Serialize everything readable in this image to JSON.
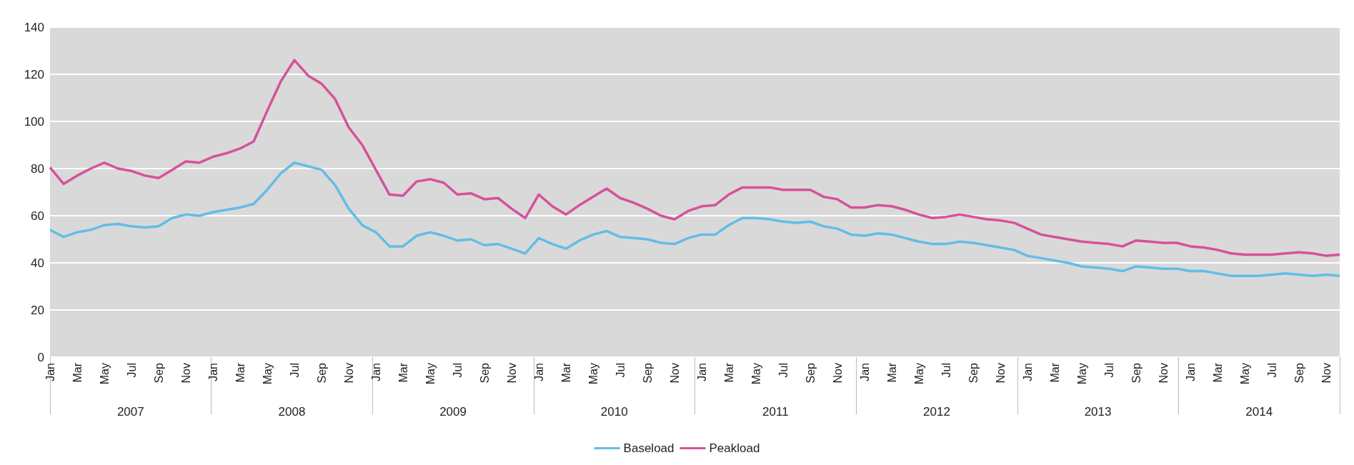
{
  "chart_data": {
    "type": "line",
    "categories": [
      "Jan",
      null,
      "Mar",
      null,
      "May",
      null,
      "Jul",
      null,
      "Sep",
      null,
      "Nov",
      null,
      "Jan",
      null,
      "Mar",
      null,
      "May",
      null,
      "Jul",
      null,
      "Sep",
      null,
      "Nov",
      null,
      "Jan",
      null,
      "Mar",
      null,
      "May",
      null,
      "Jul",
      null,
      "Sep",
      null,
      "Nov",
      null,
      "Jan",
      null,
      "Mar",
      null,
      "May",
      null,
      "Jul",
      null,
      "Sep",
      null,
      "Nov",
      null,
      "Jan",
      null,
      "Mar",
      null,
      "May",
      null,
      "Jul",
      null,
      "Sep",
      null,
      "Nov",
      null,
      "Jan",
      null,
      "Mar",
      null,
      "May",
      null,
      "Jul",
      null,
      "Sep",
      null,
      "Nov",
      null,
      "Jan",
      null,
      "Mar",
      null,
      "May",
      null,
      "Jul",
      null,
      "Sep",
      null,
      "Nov",
      null,
      "Jan",
      null,
      "Mar",
      null,
      "May",
      null,
      "Jul",
      null,
      "Sep",
      null,
      "Nov",
      null
    ],
    "series": [
      {
        "name": "Baseload",
        "color": "#62bde6",
        "values": [
          54,
          51,
          53,
          54,
          56,
          56.5,
          55.5,
          55,
          55.5,
          59,
          60.5,
          60,
          61.5,
          62.5,
          63.5,
          65,
          71,
          78,
          82.5,
          81,
          79.5,
          73,
          63,
          56,
          53,
          47,
          47,
          51.5,
          53,
          51.5,
          49.5,
          50,
          47.5,
          48,
          46,
          44,
          50.5,
          48,
          46,
          49.5,
          52,
          53.5,
          51,
          50.5,
          50,
          48.5,
          48,
          50.5,
          52,
          52,
          56,
          59,
          59,
          58.5,
          57.5,
          57,
          57.5,
          55.5,
          54.5,
          52,
          51.5,
          52.5,
          52,
          50.5,
          49,
          48,
          48,
          49,
          48.5,
          47.5,
          46.5,
          45.5,
          43,
          42,
          41,
          40,
          38.5,
          38,
          37.5,
          36.5,
          38.5,
          38,
          37.5,
          37.5,
          36.5,
          36.5,
          35.5,
          34.5,
          34.5,
          34.5,
          35,
          35.5,
          35,
          34.5,
          35,
          34.5
        ]
      },
      {
        "name": "Peakload",
        "color": "#d6519a",
        "values": [
          80.5,
          73.5,
          77,
          80,
          82.5,
          80,
          79,
          77,
          76,
          79.5,
          83,
          82.5,
          85,
          86.5,
          88.5,
          91.5,
          104.5,
          117,
          126,
          119.5,
          116,
          109.5,
          97.5,
          90,
          79.5,
          69,
          68.5,
          74.5,
          75.5,
          74,
          69,
          69.5,
          67,
          67.5,
          63,
          59,
          69,
          64,
          60.5,
          64.5,
          68,
          71.5,
          67.5,
          65.5,
          63,
          60,
          58.5,
          62,
          64,
          64.5,
          69,
          72,
          72,
          72,
          71,
          71,
          71,
          68,
          67,
          63.5,
          63.5,
          64.5,
          64,
          62.5,
          60.5,
          59,
          59.5,
          60.5,
          59.5,
          58.5,
          58,
          57,
          54.5,
          52,
          51,
          50,
          49,
          48.5,
          48,
          47,
          49.5,
          49,
          48.5,
          48.5,
          47,
          46.5,
          45.5,
          44,
          43.5,
          43.5,
          43.5,
          44,
          44.5,
          44,
          43,
          43.5
        ]
      }
    ],
    "annotations": [
      "2007",
      "2008",
      "2009",
      "2010",
      "2011",
      "2012",
      "2013",
      "2014"
    ],
    "ylim": [
      0,
      140
    ],
    "yticks": [
      0,
      20,
      40,
      60,
      80,
      100,
      120,
      140
    ],
    "grid": "y",
    "legend": "bottom",
    "marker": "none",
    "line_style": "solid"
  }
}
